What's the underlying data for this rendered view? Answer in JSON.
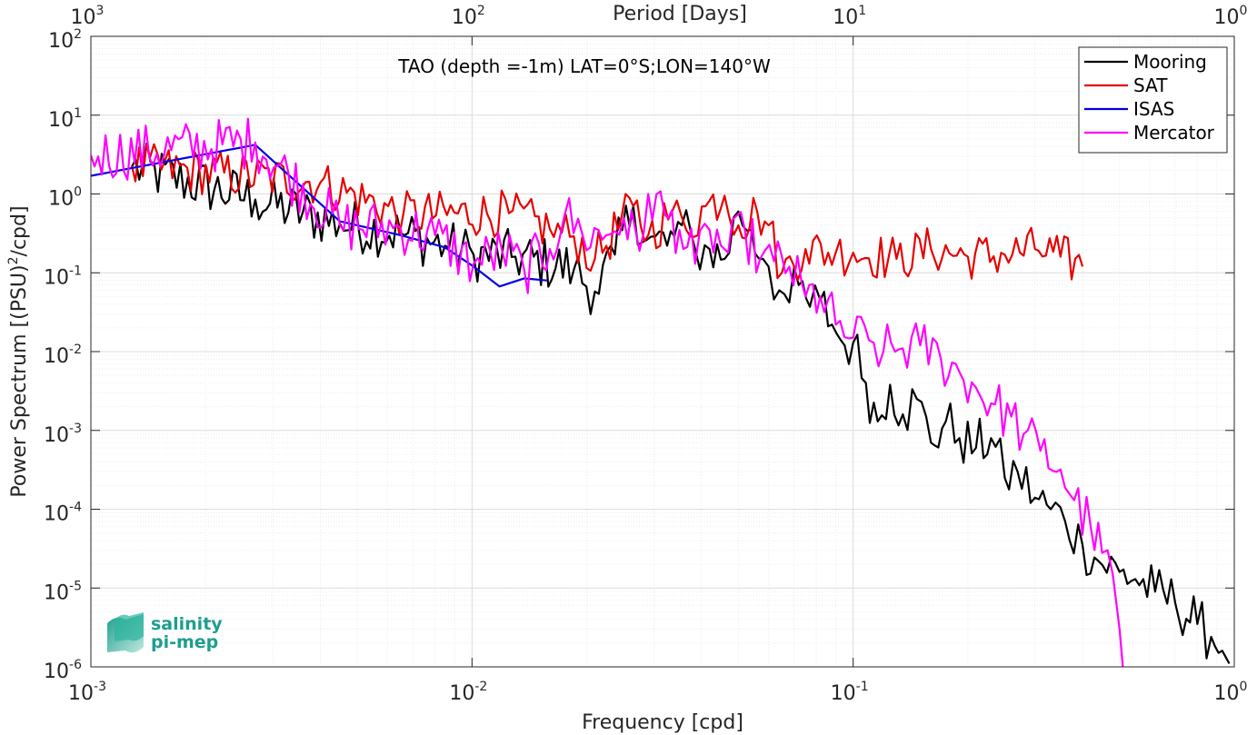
{
  "chart_data": {
    "type": "line",
    "title": "TAO (depth =-1m) LAT=0°S;LON=140°W",
    "xlabel": "Frequency [cpd]",
    "ylabel": "Power Spectrum [(PSU)²/cpd]",
    "ylabel_parts": {
      "before": "Power Spectrum [(PSU)",
      "sup": "2",
      "after": "/cpd]"
    },
    "top_xlabel": "Period [Days]",
    "xscale": "log",
    "yscale": "log",
    "xlim": [
      0.001,
      1
    ],
    "ylim": [
      1e-06,
      100
    ],
    "grid": "on (major and minor)",
    "legend_position": "top-right",
    "x_tick_labels": [
      {
        "base": "10",
        "exp": "-3",
        "value": 0.001
      },
      {
        "base": "10",
        "exp": "-2",
        "value": 0.01
      },
      {
        "base": "10",
        "exp": "-1",
        "value": 0.1
      },
      {
        "base": "10",
        "exp": "0",
        "value": 1
      }
    ],
    "top_tick_labels": [
      {
        "base": "10",
        "exp": "3",
        "value": 0.001
      },
      {
        "base": "10",
        "exp": "2",
        "value": 0.01
      },
      {
        "base": "10",
        "exp": "1",
        "value": 0.1
      },
      {
        "base": "10",
        "exp": "0",
        "value": 1
      }
    ],
    "y_tick_labels": [
      {
        "base": "10",
        "exp": "2",
        "value": 100
      },
      {
        "base": "10",
        "exp": "1",
        "value": 10
      },
      {
        "base": "10",
        "exp": "0",
        "value": 1
      },
      {
        "base": "10",
        "exp": "-1",
        "value": 0.1
      },
      {
        "base": "10",
        "exp": "-2",
        "value": 0.01
      },
      {
        "base": "10",
        "exp": "-3",
        "value": 0.001
      },
      {
        "base": "10",
        "exp": "-4",
        "value": 0.0001
      },
      {
        "base": "10",
        "exp": "-5",
        "value": 1e-05
      },
      {
        "base": "10",
        "exp": "-6",
        "value": 1e-06
      }
    ],
    "series": [
      {
        "name": "Mooring",
        "color": "#000000",
        "points": [
          [
            0.00128,
            2.2
          ],
          [
            0.0027,
            0.85
          ],
          [
            0.0045,
            0.42
          ],
          [
            0.0065,
            0.32
          ],
          [
            0.0085,
            0.22
          ],
          [
            0.0101,
            0.17
          ],
          [
            0.013,
            0.16
          ],
          [
            0.0185,
            0.11
          ],
          [
            0.021,
            0.058
          ],
          [
            0.0237,
            0.17
          ],
          [
            0.0265,
            0.7
          ],
          [
            0.0287,
            0.26
          ],
          [
            0.0303,
            0.29
          ],
          [
            0.0325,
            0.22
          ],
          [
            0.0355,
            0.4
          ],
          [
            0.0385,
            0.2
          ],
          [
            0.042,
            0.2
          ],
          [
            0.046,
            0.15
          ],
          [
            0.05,
            0.6
          ],
          [
            0.054,
            0.35
          ],
          [
            0.058,
            0.15
          ],
          [
            0.06,
            0.12
          ],
          [
            0.064,
            0.06
          ],
          [
            0.068,
            0.042
          ],
          [
            0.072,
            0.07
          ],
          [
            0.077,
            0.037
          ],
          [
            0.082,
            0.045
          ],
          [
            0.088,
            0.022
          ],
          [
            0.095,
            0.012
          ],
          [
            0.1,
            0.013
          ],
          [
            0.108,
            0.004
          ],
          [
            0.116,
            0.0013
          ],
          [
            0.125,
            0.0038
          ],
          [
            0.135,
            0.0016
          ],
          [
            0.147,
            0.0025
          ],
          [
            0.16,
            0.0007
          ],
          [
            0.175,
            0.0013
          ],
          [
            0.19,
            0.0008
          ],
          [
            0.21,
            0.0006
          ],
          [
            0.23,
            0.0008
          ],
          [
            0.25,
            0.00025
          ],
          [
            0.27,
            0.0003
          ],
          [
            0.3,
            0.00014
          ],
          [
            0.33,
            0.0001
          ],
          [
            0.36,
            7e-05
          ],
          [
            0.4,
            3.5e-05
          ],
          [
            0.44,
            2.2e-05
          ],
          [
            0.5,
            1.6e-05
          ],
          [
            0.55,
            1.3e-05
          ],
          [
            0.62,
            9e-06
          ],
          [
            0.7,
            6.5e-06
          ],
          [
            0.8,
            3.5e-06
          ],
          [
            0.87,
            2.4e-06
          ],
          [
            0.93,
            1.6e-06
          ],
          [
            0.97,
            1.1e-06
          ]
        ],
        "jitter": 0.35
      },
      {
        "name": "SAT",
        "color": "#e60000",
        "points": [
          [
            0.00128,
            2.3
          ],
          [
            0.004,
            1.4
          ],
          [
            0.0066,
            0.55
          ],
          [
            0.0125,
            0.57
          ],
          [
            0.016,
            0.36
          ],
          [
            0.0185,
            0.29
          ],
          [
            0.021,
            0.15
          ],
          [
            0.0265,
            0.7
          ],
          [
            0.029,
            0.3
          ],
          [
            0.0335,
            0.6
          ],
          [
            0.0365,
            0.35
          ],
          [
            0.041,
            0.7
          ],
          [
            0.046,
            0.95
          ],
          [
            0.05,
            0.4
          ],
          [
            0.056,
            0.6
          ],
          [
            0.06,
            0.4
          ],
          [
            0.065,
            0.1
          ],
          [
            0.075,
            0.2
          ],
          [
            0.09,
            0.18
          ],
          [
            0.1,
            0.18
          ],
          [
            0.13,
            0.15
          ],
          [
            0.16,
            0.2
          ],
          [
            0.2,
            0.16
          ],
          [
            0.25,
            0.17
          ],
          [
            0.3,
            0.2
          ],
          [
            0.35,
            0.16
          ],
          [
            0.4,
            0.12
          ]
        ],
        "jitter": 0.3
      },
      {
        "name": "ISAS",
        "color": "#0000e6",
        "points": [
          [
            0.001,
            1.7
          ],
          [
            0.0027,
            4.2
          ],
          [
            0.0045,
            0.45
          ],
          [
            0.0065,
            0.3
          ],
          [
            0.0085,
            0.21
          ],
          [
            0.0101,
            0.12
          ],
          [
            0.0118,
            0.067
          ],
          [
            0.0137,
            0.085
          ],
          [
            0.0157,
            0.08
          ]
        ],
        "jitter": 0.0
      },
      {
        "name": "Mercator",
        "color": "#ff00ff",
        "points": [
          [
            0.001,
            3.1
          ],
          [
            0.0027,
            4.5
          ],
          [
            0.0045,
            0.4
          ],
          [
            0.0065,
            0.37
          ],
          [
            0.008,
            0.3
          ],
          [
            0.0101,
            0.13
          ],
          [
            0.012,
            0.19
          ],
          [
            0.0137,
            0.11
          ],
          [
            0.016,
            0.2
          ],
          [
            0.0175,
            0.54
          ],
          [
            0.0195,
            0.3
          ],
          [
            0.0225,
            0.3
          ],
          [
            0.025,
            0.5
          ],
          [
            0.0275,
            0.19
          ],
          [
            0.029,
            1.0
          ],
          [
            0.032,
            0.55
          ],
          [
            0.035,
            0.35
          ],
          [
            0.0385,
            0.13
          ],
          [
            0.042,
            0.35
          ],
          [
            0.047,
            0.18
          ],
          [
            0.052,
            0.35
          ],
          [
            0.057,
            0.15
          ],
          [
            0.062,
            0.14
          ],
          [
            0.068,
            0.12
          ],
          [
            0.075,
            0.05
          ],
          [
            0.082,
            0.05
          ],
          [
            0.09,
            0.022
          ],
          [
            0.1,
            0.015
          ],
          [
            0.11,
            0.014
          ],
          [
            0.12,
            0.01
          ],
          [
            0.135,
            0.011
          ],
          [
            0.15,
            0.012
          ],
          [
            0.17,
            0.008
          ],
          [
            0.19,
            0.0055
          ],
          [
            0.21,
            0.0035
          ],
          [
            0.23,
            0.0022
          ],
          [
            0.26,
            0.0015
          ],
          [
            0.28,
            0.0009
          ],
          [
            0.31,
            0.00055
          ],
          [
            0.35,
            0.00032
          ],
          [
            0.38,
            0.00013
          ],
          [
            0.42,
            6e-05
          ],
          [
            0.45,
            2.8e-05
          ],
          [
            0.48,
            1.5e-05
          ],
          [
            0.5,
            3e-06
          ],
          [
            0.51,
            1e-06
          ]
        ],
        "jitter": 0.35
      }
    ]
  },
  "logo": {
    "line1": "salinity",
    "line2": "pi-mep"
  }
}
